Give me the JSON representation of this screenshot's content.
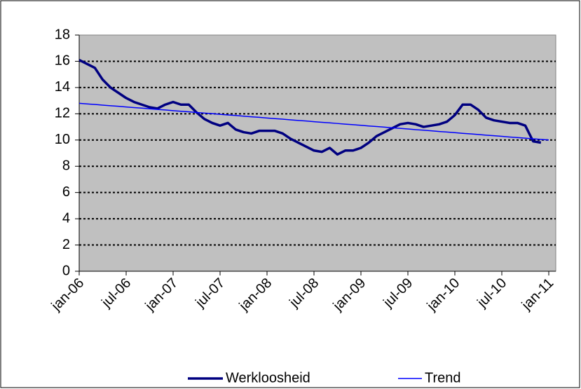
{
  "chart_data": {
    "type": "line",
    "categories": [
      "jan-06",
      null,
      null,
      null,
      null,
      null,
      "jul-06",
      null,
      null,
      null,
      null,
      null,
      "jan-07",
      null,
      null,
      null,
      null,
      null,
      "jul-07",
      null,
      null,
      null,
      null,
      null,
      "jan-08",
      null,
      null,
      null,
      null,
      null,
      "jul-08",
      null,
      null,
      null,
      null,
      null,
      "jan-09",
      null,
      null,
      null,
      null,
      null,
      "jul-09",
      null,
      null,
      null,
      null,
      null,
      "jan-10",
      null,
      null,
      null,
      null,
      null,
      "jul-10",
      null,
      null,
      null,
      null,
      null,
      "jan-11"
    ],
    "series": [
      {
        "name": "Werkloosheid",
        "color": "#000080",
        "values": [
          16.1,
          15.8,
          15.5,
          14.6,
          14.0,
          13.6,
          13.2,
          12.9,
          12.7,
          12.5,
          12.4,
          12.7,
          12.9,
          12.7,
          12.7,
          12.1,
          11.6,
          11.3,
          11.1,
          11.3,
          10.8,
          10.6,
          10.5,
          10.7,
          10.7,
          10.7,
          10.5,
          10.1,
          9.8,
          9.5,
          9.2,
          9.1,
          9.4,
          8.9,
          9.2,
          9.2,
          9.4,
          9.8,
          10.3,
          10.6,
          10.9,
          11.2,
          11.3,
          11.2,
          11.0,
          11.1,
          11.2,
          11.4,
          11.9,
          12.7,
          12.7,
          12.3,
          11.7,
          11.5,
          11.4,
          11.3,
          11.3,
          11.1,
          9.9,
          9.8,
          null
        ]
      },
      {
        "name": "Trend",
        "color": "#0000ff",
        "values": [
          12.8,
          12.75,
          12.71,
          12.66,
          12.61,
          12.57,
          12.52,
          12.47,
          12.43,
          12.38,
          12.33,
          12.29,
          12.24,
          12.19,
          12.15,
          12.1,
          12.05,
          12.01,
          11.96,
          11.91,
          11.87,
          11.82,
          11.77,
          11.73,
          11.68,
          11.63,
          11.59,
          11.54,
          11.49,
          11.45,
          11.4,
          11.35,
          11.31,
          11.26,
          11.21,
          11.17,
          11.12,
          11.07,
          11.03,
          10.98,
          10.93,
          10.89,
          10.84,
          10.79,
          10.75,
          10.7,
          10.65,
          10.61,
          10.56,
          10.51,
          10.47,
          10.42,
          10.37,
          10.33,
          10.28,
          10.23,
          10.19,
          10.14,
          10.09,
          10.05,
          10.0
        ]
      }
    ],
    "ylim": [
      0,
      18
    ],
    "yticks": [
      0,
      2,
      4,
      6,
      8,
      10,
      12,
      14,
      16,
      18
    ],
    "grid": true,
    "legend": "bottom"
  }
}
